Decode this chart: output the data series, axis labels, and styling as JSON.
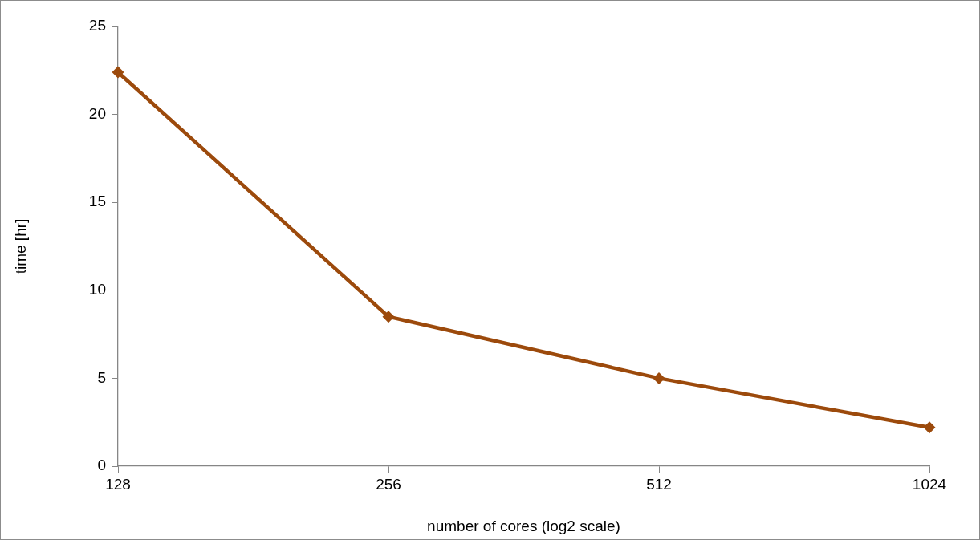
{
  "chart_data": {
    "type": "line",
    "xlabel": "number of cores (log2 scale)",
    "ylabel": "time [hr]",
    "x": [
      128,
      256,
      512,
      1024
    ],
    "series": [
      {
        "color": "#9c4a0c",
        "values": [
          22.4,
          8.5,
          5.0,
          2.2
        ]
      }
    ],
    "log": "x",
    "xlim": [
      128,
      1024
    ],
    "xticks": [
      128,
      256,
      512,
      1024
    ],
    "ylim": [
      0,
      25
    ],
    "yticks": [
      0,
      5,
      10,
      15,
      20,
      25
    ],
    "grid": false,
    "legend": false,
    "marker": "diamond",
    "line_style": "solid"
  }
}
